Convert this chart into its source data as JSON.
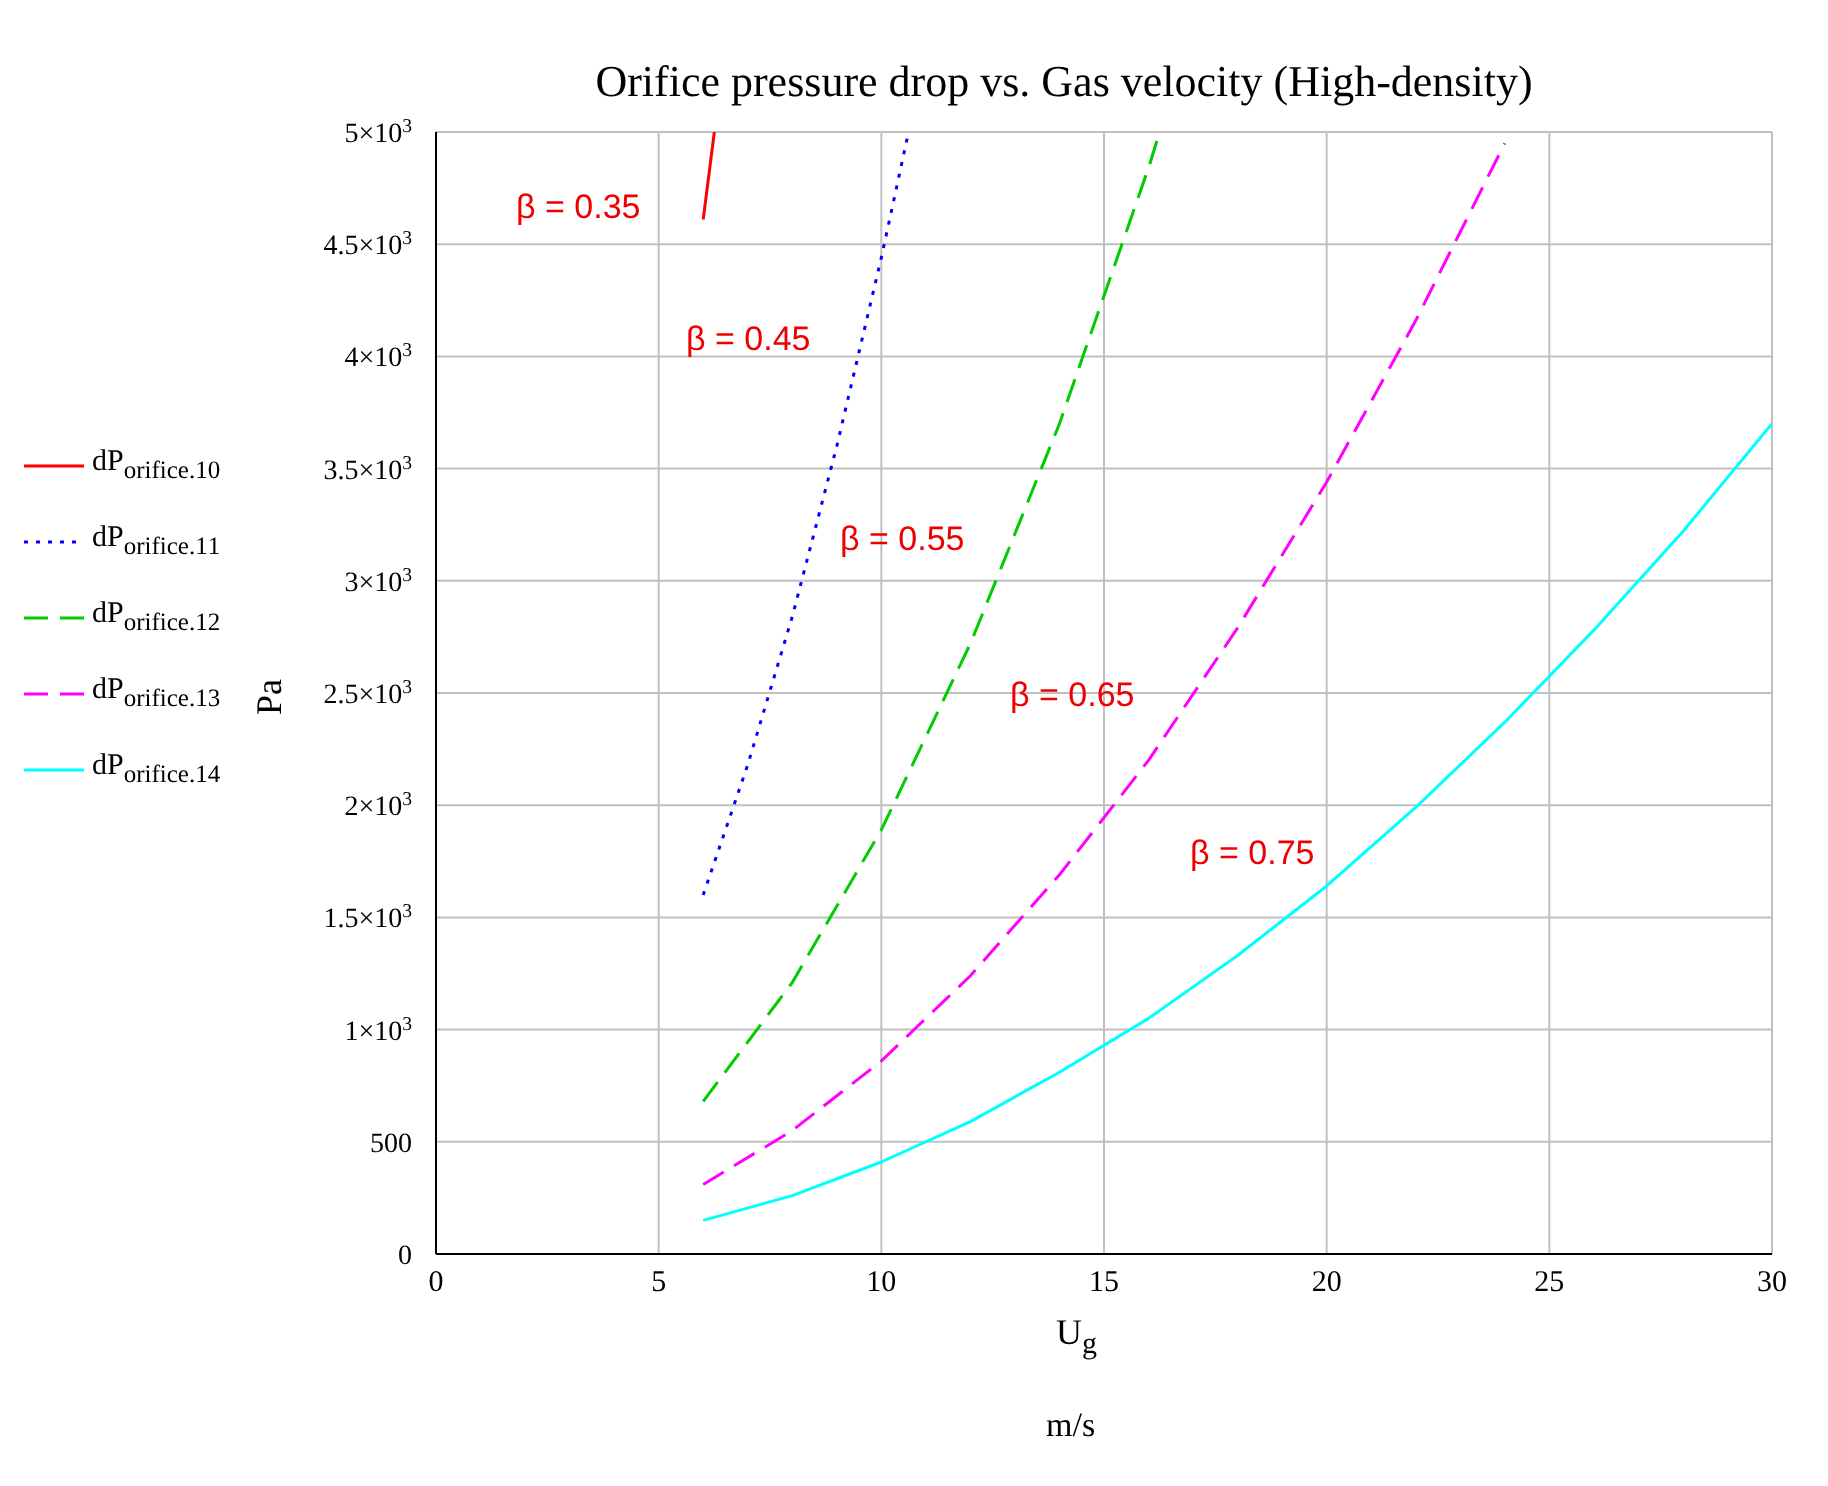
{
  "chart_data": {
    "type": "line",
    "title": "Orifice pressure drop vs. Gas velocity (High-density)",
    "xlabel": "U$_{g}$",
    "ylabel": "Pa",
    "xlim": [
      0,
      30
    ],
    "xticks": [
      0,
      5,
      10,
      15,
      20,
      25,
      30
    ],
    "ylim": [
      0,
      5000
    ],
    "yticks": [
      0,
      500,
      {
        "value": 1000,
        "label": "1×10$^{3}$"
      },
      {
        "value": 1500,
        "label": "1.5×10$^{3}$"
      },
      {
        "value": 2000,
        "label": "2×10$^{3}$"
      },
      {
        "value": 2500,
        "label": "2.5×10$^{3}$"
      },
      {
        "value": 3000,
        "label": "3×10$^{3}$"
      },
      {
        "value": 3500,
        "label": "3.5×10$^{3}$"
      },
      {
        "value": 4000,
        "label": "4×10$^{3}$"
      },
      {
        "value": 4500,
        "label": "4.5×10$^{3}$"
      },
      {
        "value": 5000,
        "label": "5×10$^{3}$"
      }
    ],
    "grid": true,
    "legend": "left",
    "marker": "none",
    "series": [
      {
        "name": "dP$_{orifice.1}$$_{0}$",
        "color": "#ff0000",
        "line_style": "solid",
        "x": [
          6,
          6.25
        ],
        "values": [
          4610,
          5000
        ]
      },
      {
        "name": "dP$_{orifice.1}$$_{1}$",
        "color": "#0000ff",
        "line_style": "dotted",
        "x": [
          6,
          7,
          8,
          9,
          10,
          10.6
        ],
        "values": [
          1600,
          2180,
          2840,
          3600,
          4440,
          4990
        ]
      },
      {
        "name": "dP$_{orifice.1}$$_{2}$",
        "color": "#00cc00",
        "line_style": "dashed",
        "x": [
          6,
          8,
          10,
          12,
          14,
          16,
          16.25
        ],
        "values": [
          680,
          1210,
          1890,
          2720,
          3700,
          4840,
          5000
        ]
      },
      {
        "name": "dP$_{orifice.1}$$_{3}$",
        "color": "#ff00ff",
        "line_style": "dashed",
        "x": [
          6,
          8,
          10,
          12,
          14,
          16,
          18,
          20,
          22,
          24
        ],
        "values": [
          310,
          550,
          860,
          1240,
          1690,
          2200,
          2790,
          3440,
          4160,
          4950
        ]
      },
      {
        "name": "dP$_{orifice.1}$$_{4}$",
        "color": "#00ffff",
        "line_style": "solid",
        "x": [
          6,
          8,
          10,
          12,
          14,
          16,
          18,
          20,
          22,
          24,
          26,
          28,
          30
        ],
        "values": [
          150,
          260,
          410,
          590,
          810,
          1050,
          1330,
          1640,
          1990,
          2370,
          2780,
          3220,
          3700
        ]
      }
    ],
    "annotations": [
      "β = 0.35",
      "β = 0.45",
      "β = 0.55",
      "β = 0.65",
      "β = 0.75",
      "m/s"
    ]
  }
}
